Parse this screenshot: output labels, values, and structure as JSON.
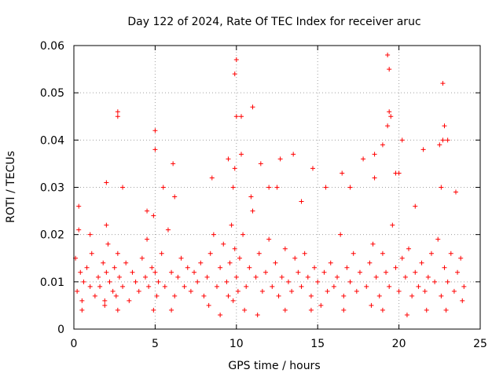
{
  "chart_data": {
    "type": "scatter",
    "title": "Day 122 of 2024, Rate Of TEC Index for receiver aruc",
    "xlabel": "GPS time / hours",
    "ylabel": "ROTI / TECUs",
    "xlim": [
      0,
      25
    ],
    "ylim": [
      0,
      0.06
    ],
    "xticks": [
      0,
      5,
      10,
      15,
      20,
      25
    ],
    "yticks": [
      0,
      0.01,
      0.02,
      0.03,
      0.04,
      0.05,
      0.06
    ],
    "xtick_labels": [
      "0",
      "5",
      "10",
      "15",
      "20",
      "25"
    ],
    "ytick_labels": [
      "0",
      "0.01",
      "0.02",
      "0.03",
      "0.04",
      "0.05",
      "0.06"
    ],
    "grid": true,
    "marker": "+",
    "marker_color": "#ff0000",
    "series": [
      {
        "x": [
          0.1,
          0.2,
          0.3,
          0.4,
          0.5,
          0.6,
          0.8,
          1.0,
          1.1,
          1.3,
          1.5,
          1.6,
          1.8,
          1.9,
          2.0,
          2.1,
          2.2,
          2.4,
          2.5,
          2.6,
          2.7,
          2.8,
          3.0,
          3.2,
          3.4,
          3.6,
          3.8,
          4.0,
          4.2,
          4.4,
          4.5,
          4.6,
          4.8,
          4.9,
          5.0,
          5.1,
          5.2,
          5.4,
          5.6,
          5.8,
          6.0,
          6.2,
          6.4,
          6.6,
          6.8,
          7.0,
          7.2,
          7.4,
          7.6,
          7.8,
          8.0,
          8.2,
          8.4,
          8.6,
          8.8,
          9.0,
          9.2,
          9.4,
          9.5,
          9.6,
          9.7,
          9.8,
          9.9,
          10.0,
          10.1,
          10.2,
          10.4,
          10.6,
          10.8,
          11.0,
          11.2,
          11.4,
          11.6,
          11.8,
          12.0,
          12.2,
          12.4,
          12.6,
          12.8,
          13.0,
          13.2,
          13.4,
          13.6,
          13.8,
          14.0,
          14.2,
          14.4,
          14.6,
          14.8,
          15.0,
          15.2,
          15.4,
          15.6,
          15.8,
          16.0,
          16.2,
          16.4,
          16.6,
          16.8,
          17.0,
          17.2,
          17.4,
          17.6,
          18.0,
          18.2,
          18.4,
          18.6,
          18.8,
          19.0,
          19.2,
          19.4,
          19.6,
          19.8,
          20.0,
          20.2,
          20.4,
          20.6,
          20.8,
          21.0,
          21.2,
          21.4,
          21.6,
          21.8,
          22.0,
          22.2,
          22.4,
          22.6,
          22.8,
          23.0,
          23.2,
          23.4,
          23.6,
          23.8,
          24.0,
          0.3,
          1.0,
          2.0,
          3.0,
          4.5,
          5.5,
          6.2,
          8.5,
          9.8,
          10.9,
          12.5,
          14.0,
          15.5,
          17.0,
          18.5,
          19.8,
          21.0,
          22.6,
          23.5,
          0.5,
          1.9,
          2.7,
          4.9,
          6.0,
          8.3,
          9.0,
          10.5,
          11.3,
          13.0,
          14.6,
          16.6,
          18.3,
          19.0,
          20.5,
          21.7,
          22.9,
          23.9,
          2.7,
          5.0,
          6.1,
          10.0,
          11.5,
          12.7,
          14.7,
          16.5,
          18.5,
          19.3,
          20.2,
          21.5,
          22.7,
          9.5,
          9.9,
          10.3,
          12.0,
          13.5,
          17.8,
          19.0,
          20.0,
          22.5,
          2.0,
          2.7,
          5.0,
          10.3,
          11.0,
          19.5,
          19.4,
          22.7,
          22.8,
          9.9,
          10.0,
          19.3,
          19.4,
          23.0
        ],
        "y": [
          0.015,
          0.008,
          0.021,
          0.012,
          0.006,
          0.01,
          0.013,
          0.009,
          0.016,
          0.007,
          0.011,
          0.009,
          0.014,
          0.006,
          0.012,
          0.018,
          0.01,
          0.008,
          0.013,
          0.007,
          0.016,
          0.011,
          0.009,
          0.014,
          0.006,
          0.012,
          0.01,
          0.008,
          0.015,
          0.011,
          0.019,
          0.009,
          0.013,
          0.024,
          0.012,
          0.007,
          0.01,
          0.016,
          0.009,
          0.021,
          0.012,
          0.007,
          0.011,
          0.015,
          0.009,
          0.013,
          0.008,
          0.012,
          0.01,
          0.014,
          0.007,
          0.011,
          0.016,
          0.02,
          0.009,
          0.013,
          0.018,
          0.01,
          0.007,
          0.014,
          0.022,
          0.006,
          0.017,
          0.011,
          0.008,
          0.015,
          0.02,
          0.009,
          0.013,
          0.025,
          0.011,
          0.016,
          0.008,
          0.012,
          0.019,
          0.009,
          0.014,
          0.007,
          0.011,
          0.017,
          0.01,
          0.008,
          0.015,
          0.012,
          0.009,
          0.016,
          0.011,
          0.007,
          0.013,
          0.01,
          0.005,
          0.012,
          0.008,
          0.014,
          0.009,
          0.011,
          0.02,
          0.007,
          0.013,
          0.01,
          0.016,
          0.008,
          0.012,
          0.009,
          0.014,
          0.018,
          0.011,
          0.007,
          0.016,
          0.012,
          0.009,
          0.022,
          0.013,
          0.008,
          0.015,
          0.011,
          0.017,
          0.007,
          0.012,
          0.009,
          0.014,
          0.008,
          0.011,
          0.016,
          0.01,
          0.019,
          0.007,
          0.013,
          0.01,
          0.016,
          0.008,
          0.012,
          0.015,
          0.009,
          0.026,
          0.02,
          0.022,
          0.03,
          0.025,
          0.03,
          0.028,
          0.032,
          0.03,
          0.028,
          0.03,
          0.027,
          0.03,
          0.03,
          0.032,
          0.033,
          0.026,
          0.03,
          0.029,
          0.004,
          0.005,
          0.004,
          0.004,
          0.004,
          0.005,
          0.003,
          0.004,
          0.003,
          0.004,
          0.004,
          0.004,
          0.005,
          0.004,
          0.003,
          0.004,
          0.004,
          0.006,
          0.045,
          0.042,
          0.035,
          0.045,
          0.035,
          0.036,
          0.034,
          0.033,
          0.037,
          0.043,
          0.04,
          0.038,
          0.04,
          0.036,
          0.034,
          0.037,
          0.03,
          0.037,
          0.036,
          0.039,
          0.033,
          0.039,
          0.031,
          0.046,
          0.038,
          0.045,
          0.047,
          0.045,
          0.046,
          0.052,
          0.043,
          0.054,
          0.057,
          0.058,
          0.055,
          0.04
        ]
      }
    ]
  }
}
